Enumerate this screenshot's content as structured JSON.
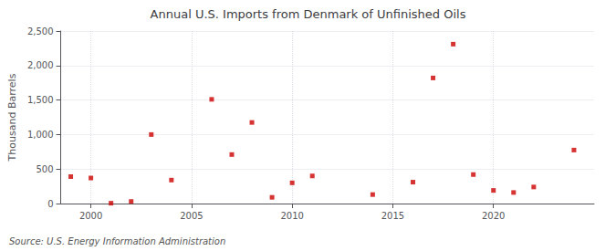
{
  "chart_data": {
    "type": "scatter",
    "title": "Annual U.S. Imports from Denmark of Unfinished Oils",
    "ylabel": "Thousand Barrels",
    "annotation": "Source: U.S. Energy Information Administration",
    "x": [
      1999,
      2000,
      2001,
      2002,
      2003,
      2004,
      2006,
      2007,
      2008,
      2009,
      2010,
      2011,
      2014,
      2016,
      2017,
      2018,
      2019,
      2020,
      2021,
      2022,
      2024
    ],
    "values": [
      390,
      370,
      5,
      30,
      1000,
      340,
      1510,
      710,
      1175,
      90,
      300,
      400,
      130,
      310,
      1820,
      2310,
      420,
      190,
      160,
      240,
      775
    ],
    "color": "#cc0000",
    "marker": "square",
    "xlim": [
      1998.5,
      2025
    ],
    "xticks": [
      2000,
      2005,
      2010,
      2015,
      2020
    ],
    "ylim": [
      0,
      2500
    ],
    "yticks": [
      0,
      500,
      {
        "value": 1000,
        "label": "1,000"
      },
      {
        "value": 1500,
        "label": "1,500"
      },
      {
        "value": 2000,
        "label": "2,000"
      },
      {
        "value": 2500,
        "label": "2,500"
      }
    ],
    "grid": true
  }
}
